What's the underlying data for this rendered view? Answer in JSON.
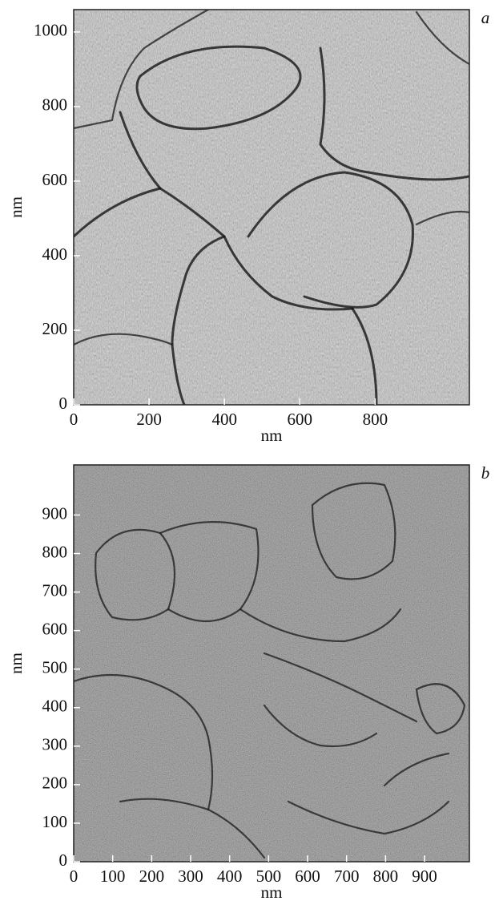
{
  "chart_data": [
    {
      "type": "image",
      "panel_label": "a",
      "x_label": "nm",
      "y_label": "nm",
      "xlim": [
        0,
        1050
      ],
      "ylim": [
        0,
        1060
      ],
      "xticks": [
        0,
        200,
        400,
        600,
        800
      ],
      "yticks": [
        0,
        200,
        400,
        600,
        800,
        1000
      ]
    },
    {
      "type": "image",
      "panel_label": "b",
      "x_label": "nm",
      "y_label": "nm",
      "xlim": [
        0,
        1015
      ],
      "ylim": [
        0,
        1030
      ],
      "xticks": [
        0,
        100,
        200,
        300,
        400,
        500,
        600,
        700,
        800,
        900
      ],
      "yticks": [
        0,
        100,
        200,
        300,
        400,
        500,
        600,
        700,
        800,
        900
      ]
    }
  ]
}
